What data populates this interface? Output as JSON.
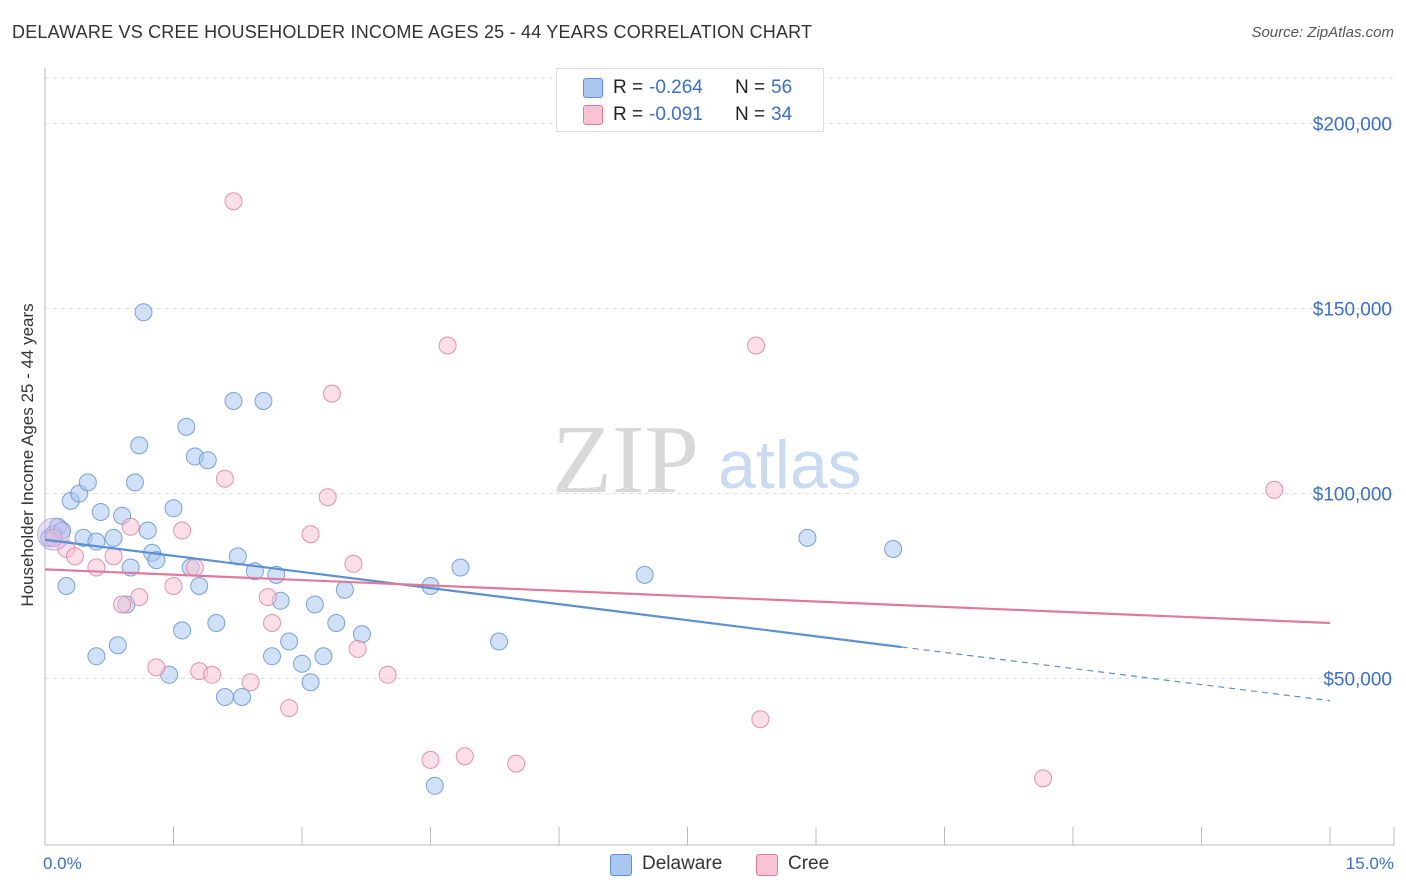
{
  "title": "DELAWARE VS CREE HOUSEHOLDER INCOME AGES 25 - 44 YEARS CORRELATION CHART",
  "source": "Source: ZipAtlas.com",
  "watermark": {
    "zip": "ZIP",
    "atlas": "atlas"
  },
  "legend": {
    "rows": [
      {
        "r_label": "R =",
        "r_value": "-0.264",
        "n_label": "N =",
        "n_value": "56",
        "color": "#a9c8f0",
        "border": "#5b8fd6"
      },
      {
        "r_label": "R =",
        "r_value": "-0.091",
        "n_label": "N =",
        "n_value": "34",
        "color": "#f8c4d4",
        "border": "#e07a9c"
      }
    ]
  },
  "bottom_legend": {
    "delaware": "Delaware",
    "cree": "Cree"
  },
  "chart_data": {
    "type": "scatter",
    "title": "DELAWARE VS CREE HOUSEHOLDER INCOME AGES 25 - 44 YEARS CORRELATION CHART",
    "xlabel": "",
    "ylabel": "Householder Income Ages 25 - 44 years",
    "xlim": [
      0,
      15
    ],
    "ylim": [
      5000,
      215000
    ],
    "x_tick_labels": [
      "0.0%",
      "15.0%"
    ],
    "y_ticks": [
      50000,
      100000,
      150000,
      200000
    ],
    "y_tick_labels": [
      "$50,000",
      "$100,000",
      "$150,000",
      "$200,000"
    ],
    "grid": true,
    "series": [
      {
        "name": "Delaware",
        "color": "#5b8fd6",
        "fill": "#a9c8f0",
        "trend": {
          "x0": 0,
          "y0": 87500,
          "x1": 10.0,
          "y1": 58500,
          "dash_x1": 15.0,
          "dash_y1": 44000
        },
        "points": [
          [
            0.05,
            88000
          ],
          [
            0.1,
            89000
          ],
          [
            0.15,
            91000
          ],
          [
            0.2,
            90000
          ],
          [
            0.25,
            75000
          ],
          [
            0.3,
            98000
          ],
          [
            0.4,
            100000
          ],
          [
            0.45,
            88000
          ],
          [
            0.5,
            103000
          ],
          [
            0.6,
            87000
          ],
          [
            0.65,
            95000
          ],
          [
            0.8,
            88000
          ],
          [
            0.85,
            59000
          ],
          [
            0.9,
            94000
          ],
          [
            0.95,
            70000
          ],
          [
            1.0,
            80000
          ],
          [
            1.05,
            103000
          ],
          [
            1.1,
            113000
          ],
          [
            1.15,
            149000
          ],
          [
            1.2,
            90000
          ],
          [
            1.25,
            84000
          ],
          [
            1.3,
            82000
          ],
          [
            1.45,
            51000
          ],
          [
            1.5,
            96000
          ],
          [
            1.6,
            63000
          ],
          [
            1.65,
            118000
          ],
          [
            1.7,
            80000
          ],
          [
            1.75,
            110000
          ],
          [
            1.8,
            75000
          ],
          [
            1.9,
            109000
          ],
          [
            2.0,
            65000
          ],
          [
            2.1,
            45000
          ],
          [
            2.2,
            125000
          ],
          [
            2.25,
            83000
          ],
          [
            2.3,
            45000
          ],
          [
            2.45,
            79000
          ],
          [
            2.55,
            125000
          ],
          [
            2.65,
            56000
          ],
          [
            2.7,
            78000
          ],
          [
            2.75,
            71000
          ],
          [
            2.85,
            60000
          ],
          [
            3.0,
            54000
          ],
          [
            3.1,
            49000
          ],
          [
            3.15,
            70000
          ],
          [
            3.25,
            56000
          ],
          [
            3.4,
            65000
          ],
          [
            3.5,
            74000
          ],
          [
            3.7,
            62000
          ],
          [
            4.5,
            75000
          ],
          [
            4.55,
            21000
          ],
          [
            4.85,
            80000
          ],
          [
            5.3,
            60000
          ],
          [
            7.0,
            78000
          ],
          [
            8.9,
            88000
          ],
          [
            9.9,
            85000
          ],
          [
            0.6,
            56000
          ]
        ]
      },
      {
        "name": "Cree",
        "color": "#e07a9c",
        "fill": "#f8c4d4",
        "trend": {
          "x0": 0,
          "y0": 79500,
          "x1": 15.0,
          "y1": 65000
        },
        "points": [
          [
            0.1,
            88000
          ],
          [
            0.25,
            85000
          ],
          [
            0.35,
            83000
          ],
          [
            0.6,
            80000
          ],
          [
            0.8,
            83000
          ],
          [
            0.9,
            70000
          ],
          [
            1.0,
            91000
          ],
          [
            1.1,
            72000
          ],
          [
            1.3,
            53000
          ],
          [
            1.5,
            75000
          ],
          [
            1.6,
            90000
          ],
          [
            1.75,
            80000
          ],
          [
            1.8,
            52000
          ],
          [
            1.95,
            51000
          ],
          [
            2.1,
            104000
          ],
          [
            2.2,
            179000
          ],
          [
            2.4,
            49000
          ],
          [
            2.6,
            72000
          ],
          [
            2.65,
            65000
          ],
          [
            2.85,
            42000
          ],
          [
            3.1,
            89000
          ],
          [
            3.3,
            99000
          ],
          [
            3.35,
            127000
          ],
          [
            3.6,
            81000
          ],
          [
            3.65,
            58000
          ],
          [
            4.0,
            51000
          ],
          [
            4.5,
            28000
          ],
          [
            4.7,
            140000
          ],
          [
            4.9,
            29000
          ],
          [
            5.5,
            27000
          ],
          [
            8.3,
            140000
          ],
          [
            8.35,
            39000
          ],
          [
            11.65,
            23000
          ],
          [
            14.35,
            101000
          ]
        ]
      }
    ]
  }
}
